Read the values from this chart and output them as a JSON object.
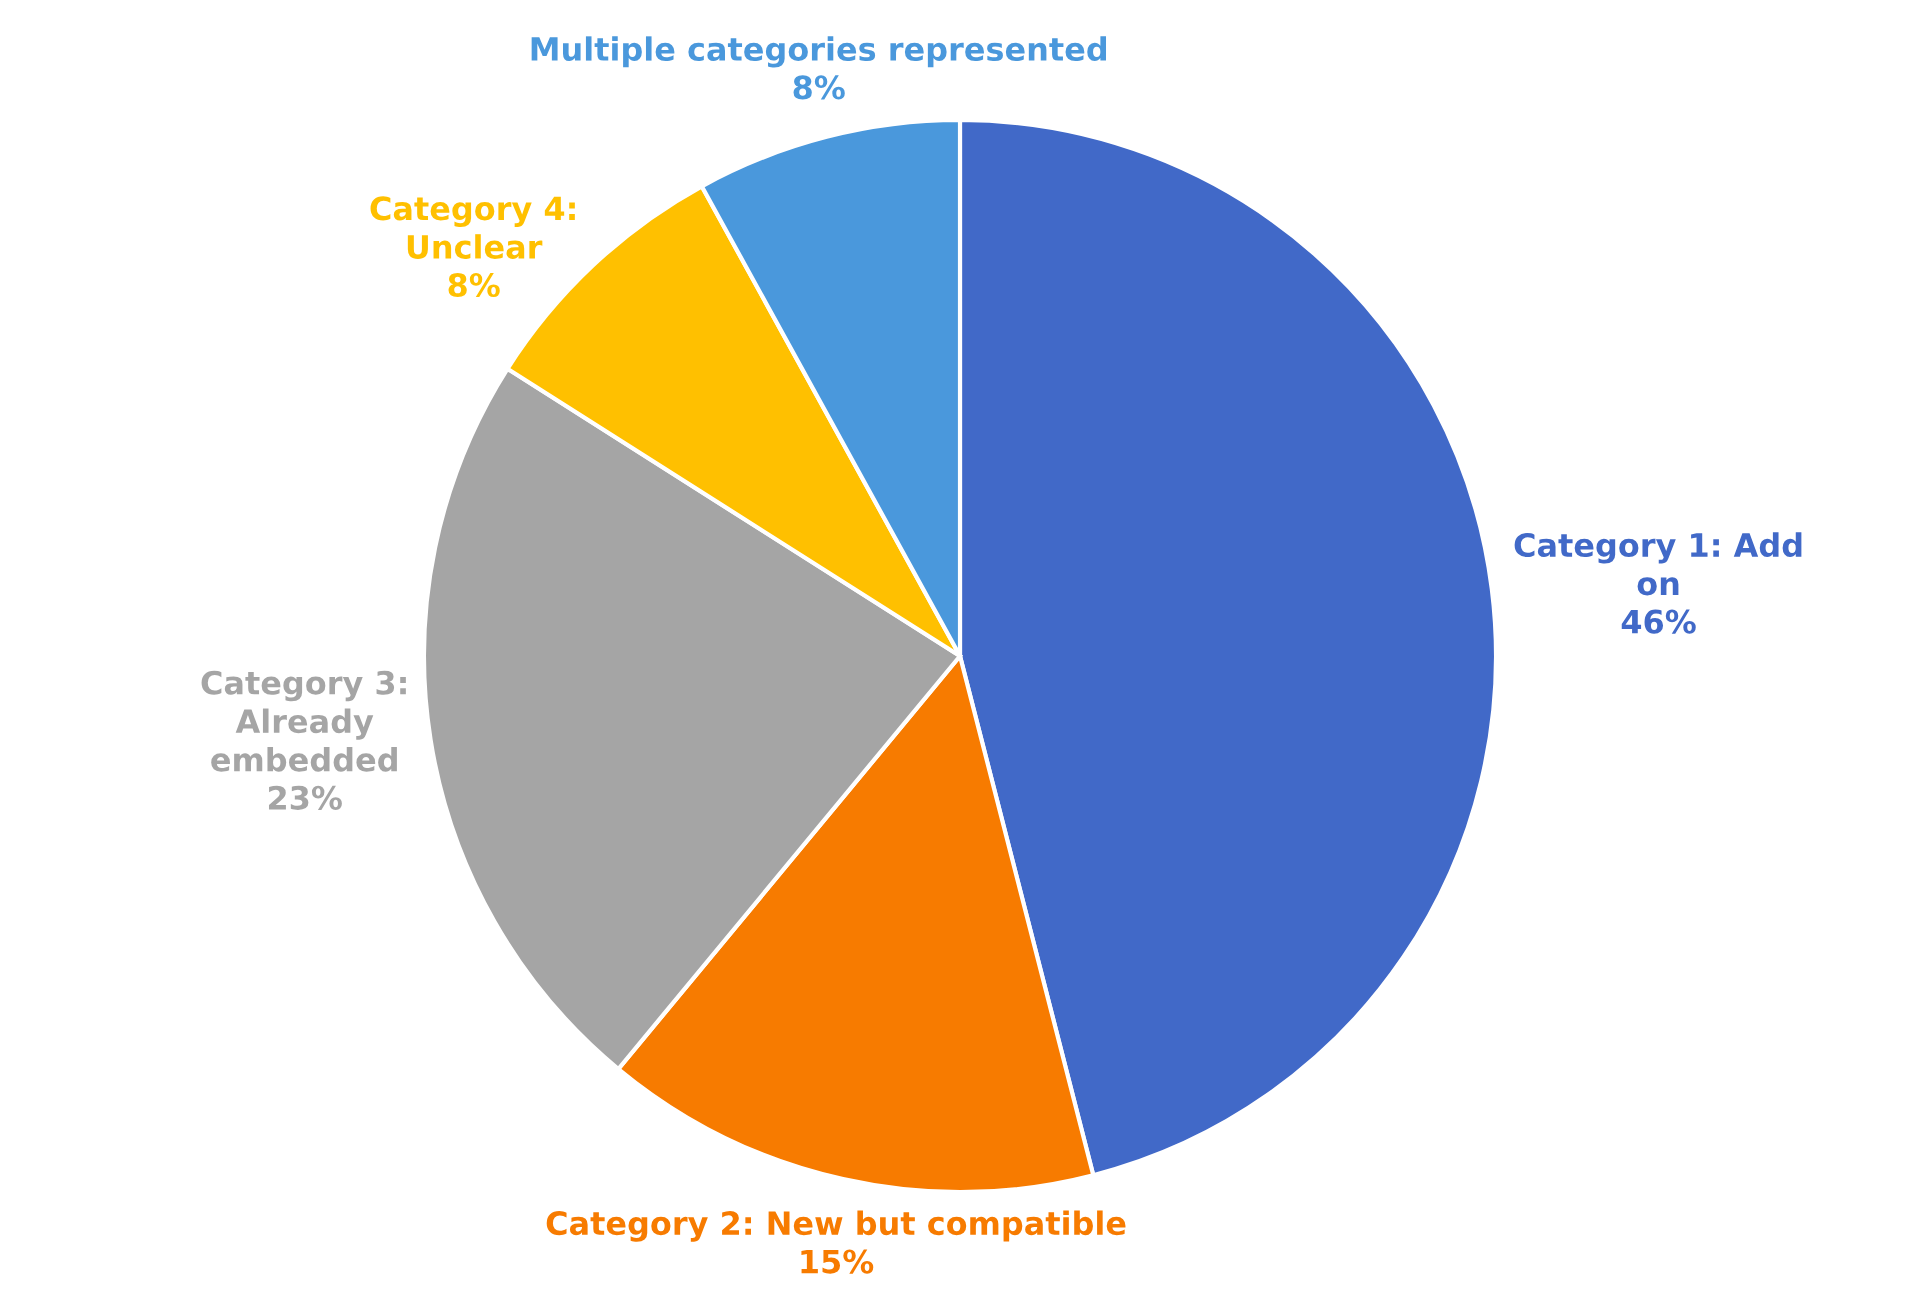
{
  "chart_data": {
    "type": "pie",
    "categories": [
      "Category 1: Add on",
      "Category 2: New but compatible",
      "Category 3: Already embedded",
      "Category 4: Unclear",
      "Multiple categories represented"
    ],
    "values": [
      46,
      15,
      23,
      8,
      8
    ],
    "value_labels": [
      "46%",
      "15%",
      "23%",
      "8%",
      "8%"
    ],
    "colors": [
      "#4169c8",
      "#f77b00",
      "#a5a5a5",
      "#ffc000",
      "#4a98dc"
    ],
    "legend": false
  }
}
